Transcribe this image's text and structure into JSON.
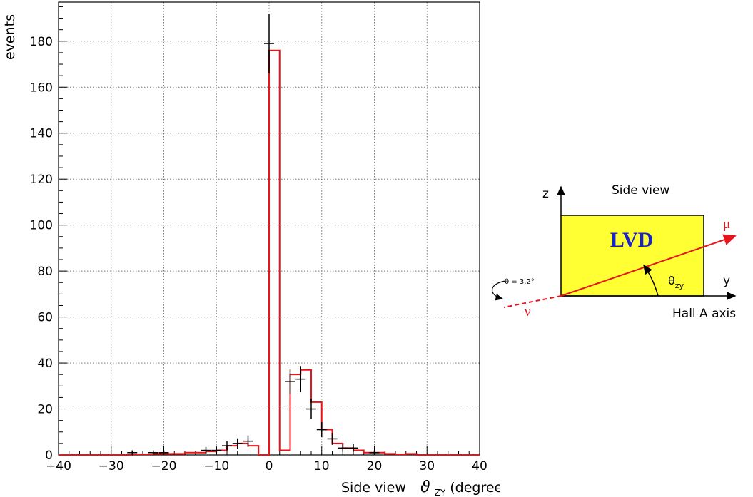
{
  "chart_data": {
    "type": "histogram",
    "xlabel_text": "Side view",
    "xlabel_symbol": "ϑ",
    "xlabel_sub": "ZY",
    "xlabel_unit": "(degrees)",
    "ylabel": "events",
    "xlim": [
      -40,
      40
    ],
    "ylim": [
      0,
      197
    ],
    "xticks": [
      -40,
      -30,
      -20,
      -10,
      0,
      10,
      20,
      30,
      40
    ],
    "yticks": [
      0,
      20,
      40,
      60,
      80,
      100,
      120,
      140,
      160,
      180
    ],
    "grid": true,
    "histogram_color": "#e8141b",
    "histogram": {
      "bin_edges": [
        -40,
        -38,
        -36,
        -34,
        -32,
        -30,
        -28,
        -26,
        -24,
        -22,
        -20,
        -18,
        -16,
        -14,
        -12,
        -10,
        -8,
        -6,
        -4,
        -2,
        0,
        2,
        4,
        6,
        8,
        10,
        12,
        14,
        16,
        18,
        20,
        22,
        24,
        26,
        28,
        30,
        32,
        34,
        36,
        38,
        40
      ],
      "values": [
        0,
        0,
        0,
        0,
        0,
        0,
        0,
        0.3,
        0.3,
        0.5,
        0.5,
        0.5,
        1,
        1,
        1.5,
        2,
        4,
        5,
        4,
        0,
        176,
        2,
        35,
        37,
        23,
        11,
        5,
        3,
        2,
        1,
        1,
        0.5,
        0.3,
        0.5,
        0,
        0,
        0,
        0,
        0,
        0
      ]
    },
    "data_points": [
      {
        "x": -26,
        "y": 1,
        "err": 1
      },
      {
        "x": -22,
        "y": 1,
        "err": 1
      },
      {
        "x": -20,
        "y": 1,
        "err": 1
      },
      {
        "x": -12,
        "y": 2,
        "err": 1.5
      },
      {
        "x": -10,
        "y": 2,
        "err": 1.5
      },
      {
        "x": -8,
        "y": 4,
        "err": 2
      },
      {
        "x": -6,
        "y": 5,
        "err": 2.2
      },
      {
        "x": -4,
        "y": 6,
        "err": 2.5
      },
      {
        "x": 0,
        "y": 179,
        "err": 13
      },
      {
        "x": 4,
        "y": 32,
        "err": 5.5
      },
      {
        "x": 6,
        "y": 33,
        "err": 5.7
      },
      {
        "x": 8,
        "y": 20,
        "err": 4.5
      },
      {
        "x": 10,
        "y": 11,
        "err": 3.3
      },
      {
        "x": 12,
        "y": 7,
        "err": 2.6
      },
      {
        "x": 14,
        "y": 3,
        "err": 1.7
      },
      {
        "x": 16,
        "y": 3,
        "err": 1.7
      },
      {
        "x": 20,
        "y": 1,
        "err": 1
      }
    ]
  },
  "diagram": {
    "title": "Side view",
    "box_label": "LVD",
    "box_color": "#ffff33",
    "z_label": "z",
    "y_label": "y",
    "mu_label": "μ",
    "nu_label": "ν",
    "theta_label": "θ",
    "theta_sub": "zy",
    "hall_label": "Hall A axis",
    "angle_note": "θ = 3.2°",
    "accent_color": "#e8141b",
    "lvd_color": "#1a23c8"
  }
}
